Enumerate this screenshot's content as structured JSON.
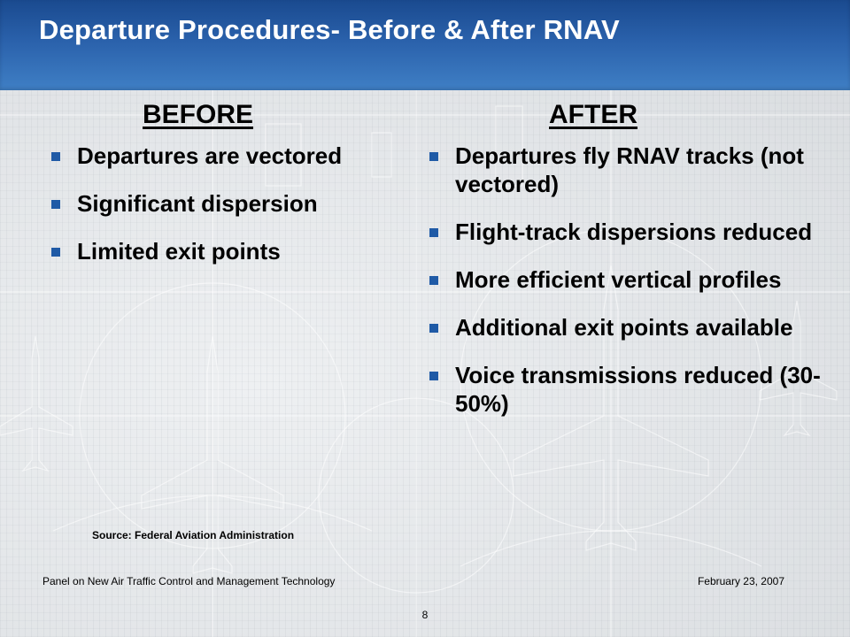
{
  "slide": {
    "title": "Departure Procedures- Before & After RNAV",
    "before": {
      "heading": "BEFORE",
      "bullets": [
        "Departures are vectored",
        "Significant dispersion",
        "Limited exit points"
      ]
    },
    "after": {
      "heading": "AFTER",
      "bullets": [
        "Departures fly RNAV tracks (not vectored)",
        "Flight-track dispersions reduced",
        "More efficient vertical profiles",
        "Additional exit points available",
        "Voice transmissions reduced (30-50%)"
      ]
    },
    "source": "Source: Federal Aviation Administration"
  },
  "footer": {
    "left": "Panel on New Air Traffic Control and Management Technology",
    "right": "February 23, 2007",
    "page_number": "8"
  },
  "colors": {
    "title_bar": "#2a61ab",
    "bullet": "#1f5aa6",
    "title_text": "#ffffff"
  },
  "icons": {
    "bullet": "square-bullet-icon",
    "background": "aircraft-blueprint-pattern"
  }
}
